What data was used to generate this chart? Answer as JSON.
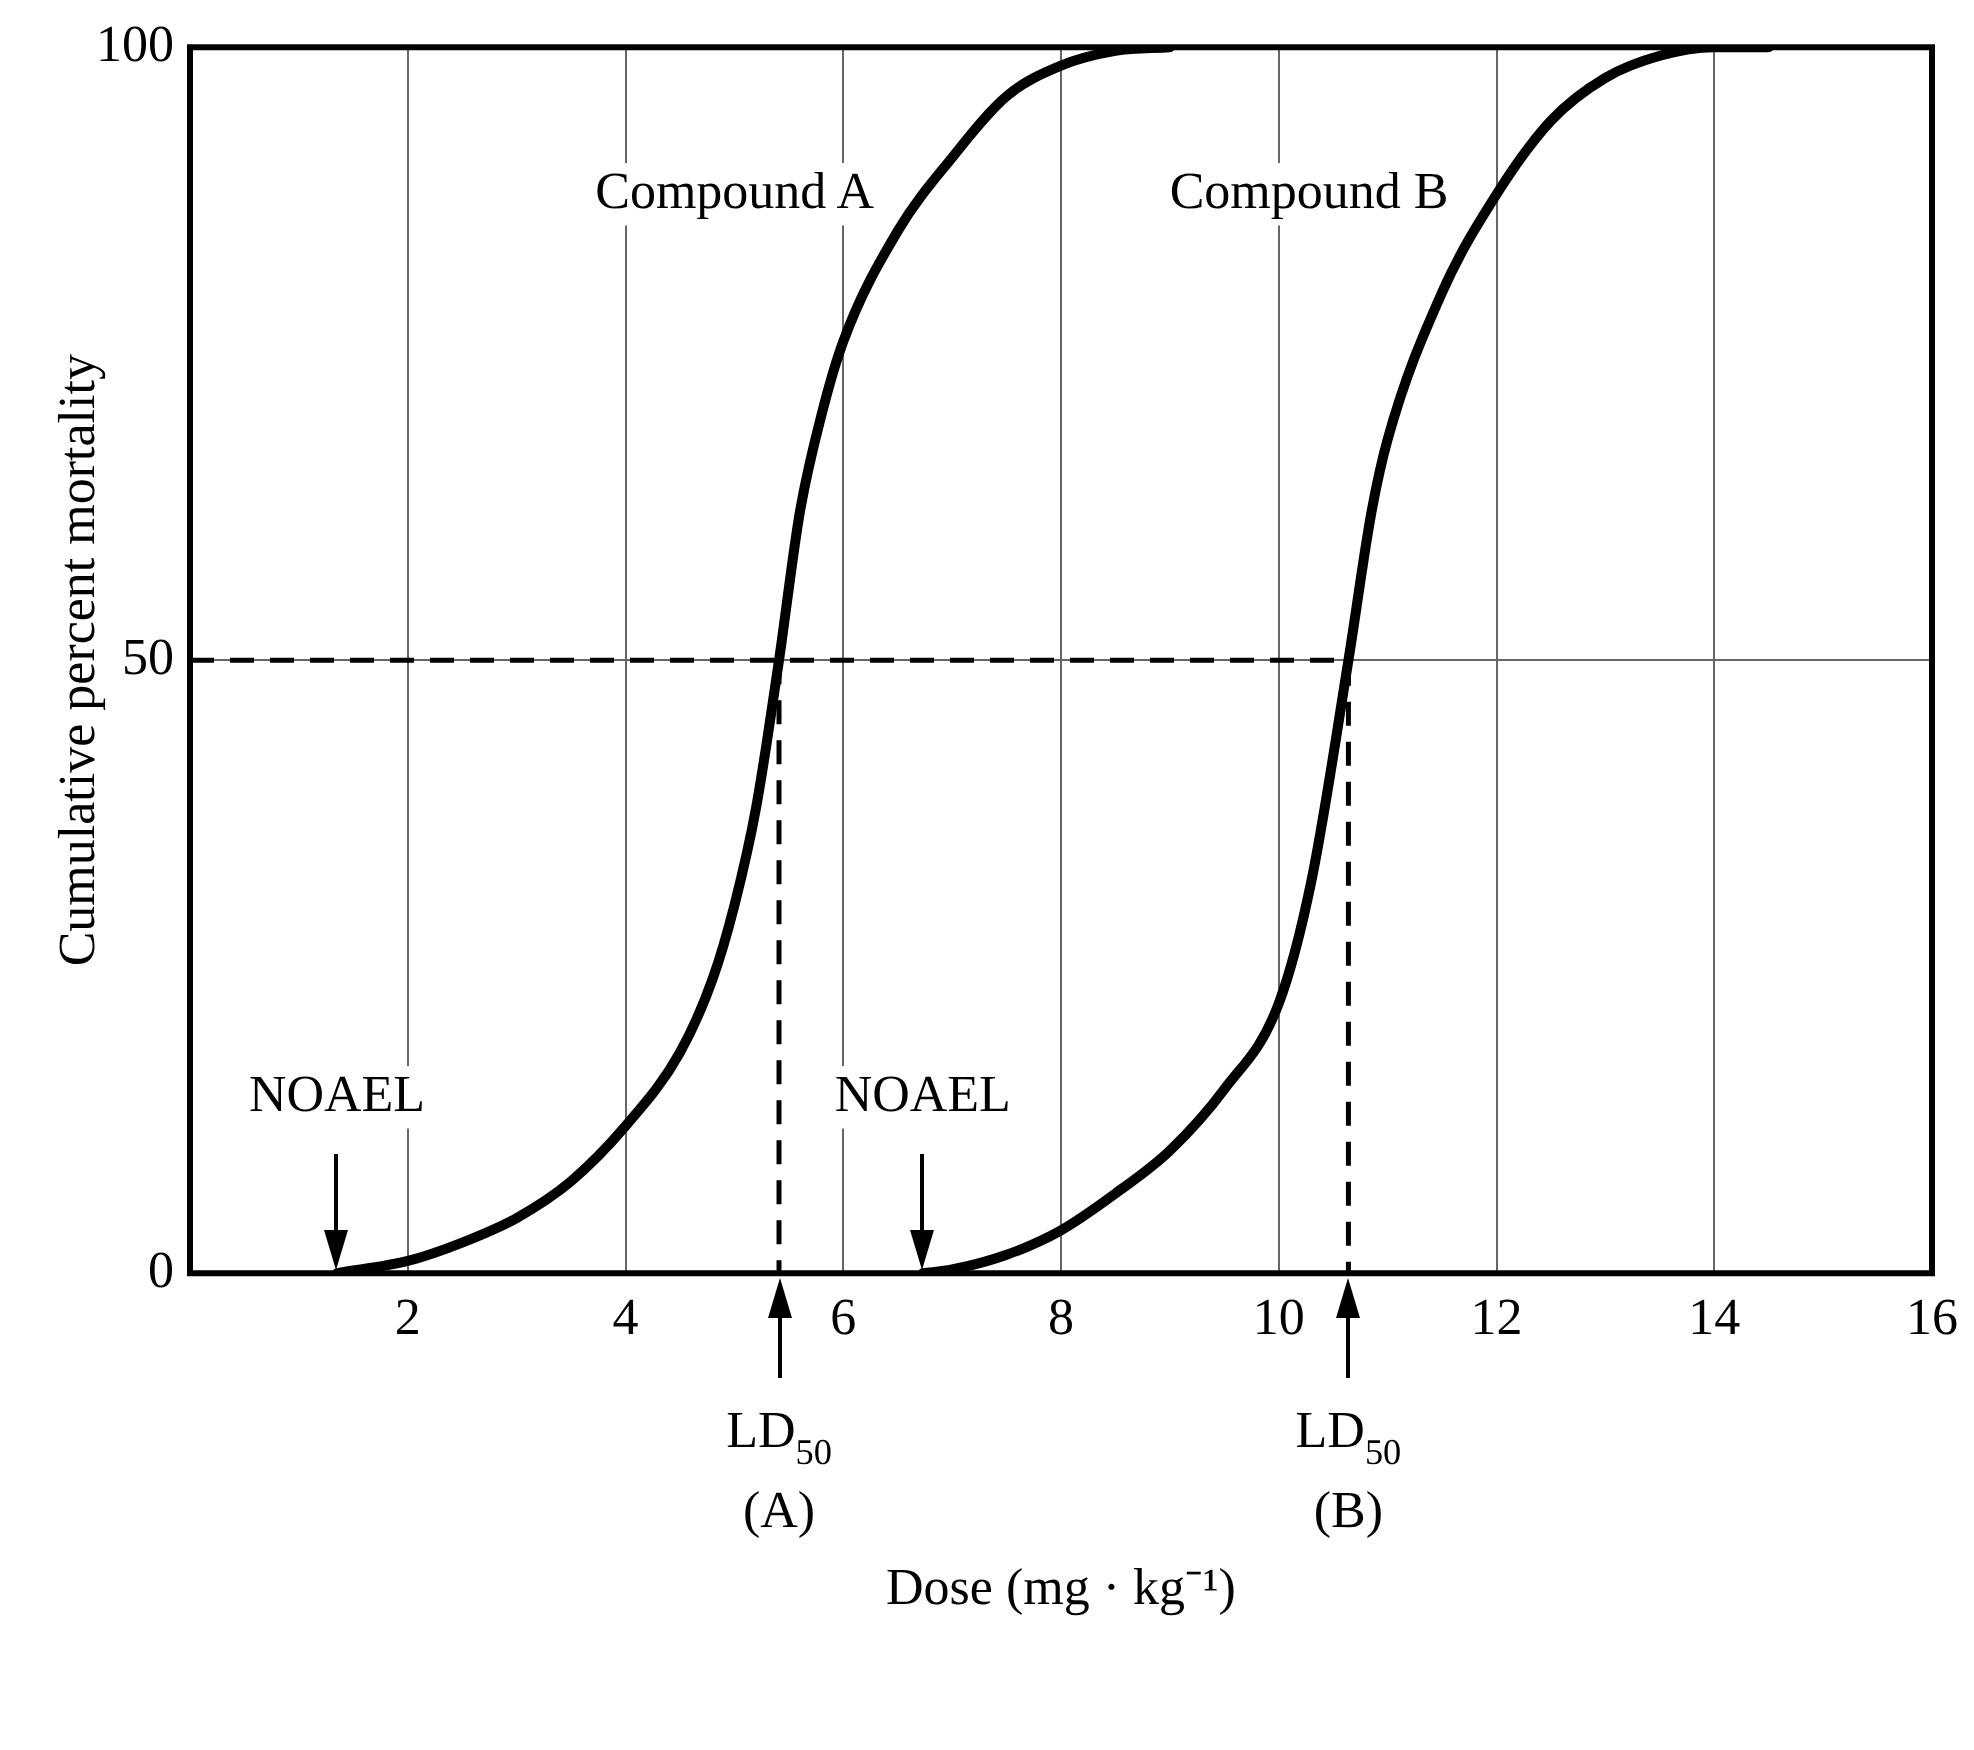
{
  "chart_data": {
    "type": "line",
    "xlabel": "Dose (mg · kg⁻¹)",
    "ylabel": "Cumulative percent mortality",
    "xlim": [
      0,
      16
    ],
    "xticks": [
      2,
      4,
      6,
      8,
      10,
      12,
      14,
      16
    ],
    "ylim": [
      0,
      100
    ],
    "yticks": [
      0,
      50,
      100
    ],
    "grid": true,
    "legend": false,
    "marker": "none",
    "line_style": "solid",
    "series": [
      {
        "name": "Compound A",
        "color": "#000000",
        "x": [
          1.35,
          2,
          2.5,
          3,
          3.5,
          4,
          4.5,
          4.8,
          5,
          5.2,
          5.41,
          5.6,
          5.8,
          6,
          6.5,
          7,
          7.5,
          8,
          8.5,
          9
        ],
        "values": [
          0,
          1,
          2.5,
          4.5,
          7.5,
          12,
          18,
          24,
          30,
          38,
          50,
          62,
          70,
          76,
          85,
          91,
          96,
          98.5,
          99.7,
          100
        ]
      },
      {
        "name": "Compound B",
        "color": "#000000",
        "x": [
          6.73,
          7,
          7.5,
          8,
          8.5,
          9,
          9.5,
          10,
          10.3,
          10.64,
          10.85,
          11,
          11.5,
          12,
          12.5,
          13,
          13.5,
          14,
          14.5
        ],
        "values": [
          0,
          0.3,
          1.5,
          3.5,
          6.5,
          10,
          15,
          22,
          32,
          50,
          62,
          68,
          80,
          88,
          94,
          97.5,
          99.3,
          100,
          100
        ]
      },
      {
        "color": "#000000",
        "line_style": "dashed",
        "x": [
          0,
          10.64,
          10.64
        ],
        "values": [
          50,
          50,
          0
        ]
      },
      {
        "color": "#000000",
        "line_style": "dashed",
        "x": [
          5.41,
          5.41
        ],
        "values": [
          50,
          0
        ]
      }
    ],
    "annotations": [
      {
        "text": "NOAEL",
        "x": 1.35,
        "y": 0
      },
      {
        "text": "NOAEL",
        "x": 6.73,
        "y": 0
      },
      {
        "text": "LD$_{50}$\n(A)",
        "x": 5.41,
        "y": 0
      },
      {
        "text": "LD$_{50}$\n(B)",
        "x": 10.64,
        "y": 0
      }
    ]
  }
}
